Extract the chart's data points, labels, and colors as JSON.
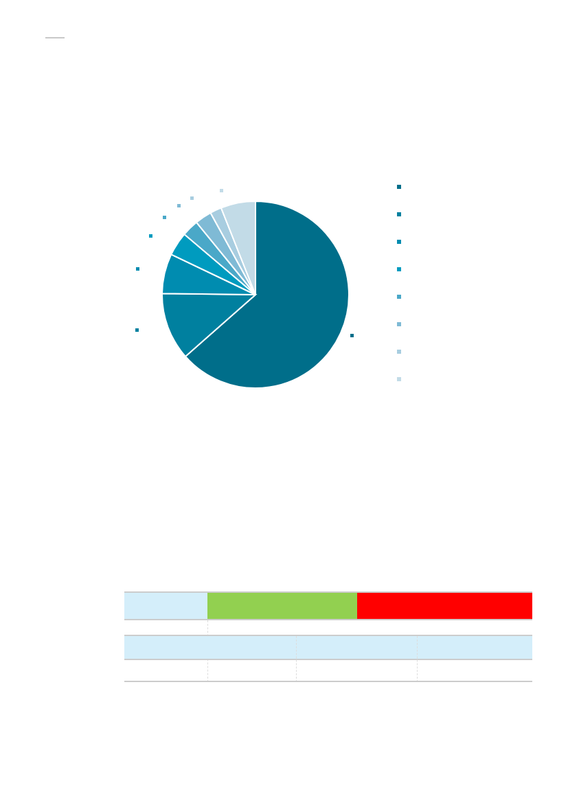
{
  "chart_data": {
    "type": "pie",
    "categories": [
      null,
      null,
      null,
      null,
      null,
      null,
      null,
      null
    ],
    "values": [
      63.5,
      11.7,
      6.9,
      4.1,
      2.9,
      2.9,
      2.0,
      6.0
    ],
    "colors": [
      "#006e8a",
      "#00809f",
      "#008cb0",
      "#009bbf",
      "#4aa8c8",
      "#7fbad5",
      "#a8cde0",
      "#c2dbe7"
    ]
  }
}
